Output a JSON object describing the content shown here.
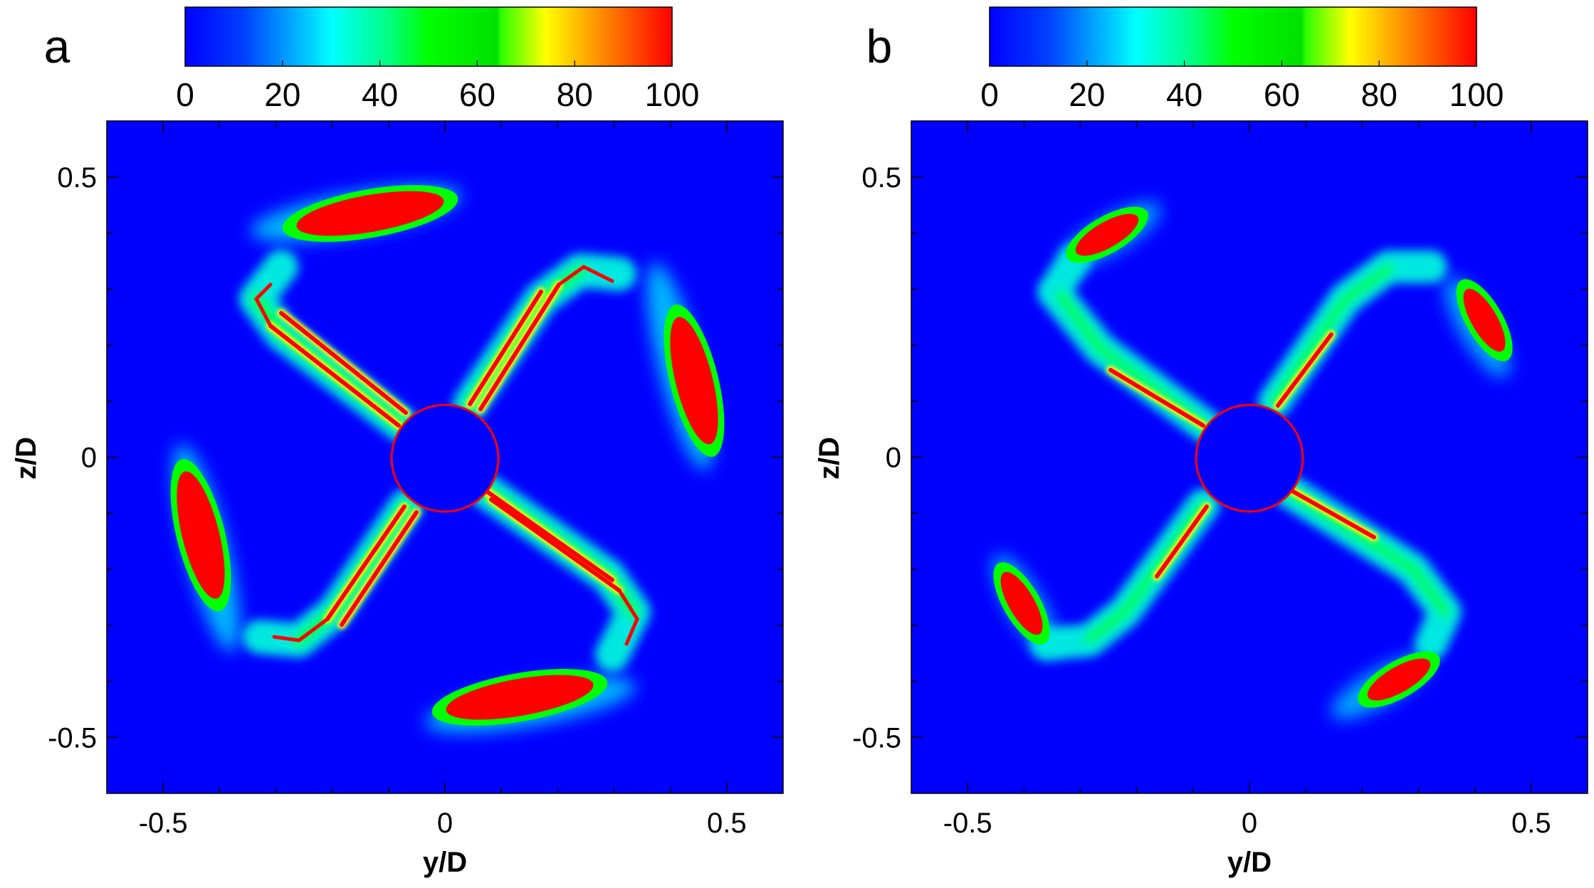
{
  "chart_data": [
    {
      "type": "heatmap",
      "panel_label": "a",
      "xlabel": "y/D",
      "ylabel": "z/D",
      "xlim": [
        -0.6,
        0.6
      ],
      "ylim": [
        -0.6,
        0.6
      ],
      "x_ticks": [
        -0.5,
        0,
        0.5
      ],
      "x_tick_labels": [
        "-0.5",
        "0",
        "0.5"
      ],
      "y_ticks": [
        -0.5,
        0,
        0.5
      ],
      "y_tick_labels": [
        "-0.5",
        "0",
        "0.5"
      ],
      "colorbar": {
        "range": [
          0,
          100
        ],
        "ticks": [
          0,
          20,
          40,
          60,
          80,
          100
        ],
        "tick_labels": [
          "0",
          "20",
          "40",
          "60",
          "80",
          "100"
        ],
        "placement": "top"
      },
      "hub_radius": 0.095,
      "arms": 4,
      "tip_region": "tip_a"
    },
    {
      "type": "heatmap",
      "panel_label": "b",
      "xlabel": "y/D",
      "ylabel": "z/D",
      "xlim": [
        -0.6,
        0.6
      ],
      "ylim": [
        -0.6,
        0.6
      ],
      "x_ticks": [
        -0.5,
        0,
        0.5
      ],
      "x_tick_labels": [
        "-0.5",
        "0",
        "0.5"
      ],
      "y_ticks": [
        -0.5,
        0,
        0.5
      ],
      "y_tick_labels": [
        "-0.5",
        "0",
        "0.5"
      ],
      "colorbar": {
        "range": [
          0,
          100
        ],
        "ticks": [
          0,
          20,
          40,
          60,
          80,
          100
        ],
        "tick_labels": [
          "0",
          "20",
          "40",
          "60",
          "80",
          "100"
        ],
        "placement": "top"
      },
      "hub_radius": 0.095,
      "arms": 4,
      "tip_region": "tip_b"
    }
  ],
  "colors": {
    "background": "#0000ff",
    "low_cyan": "#00ffff",
    "mid_green": "#00ff00",
    "high_red": "#ff0000",
    "yellow": "#ffff00",
    "orange": "#ff8000"
  }
}
